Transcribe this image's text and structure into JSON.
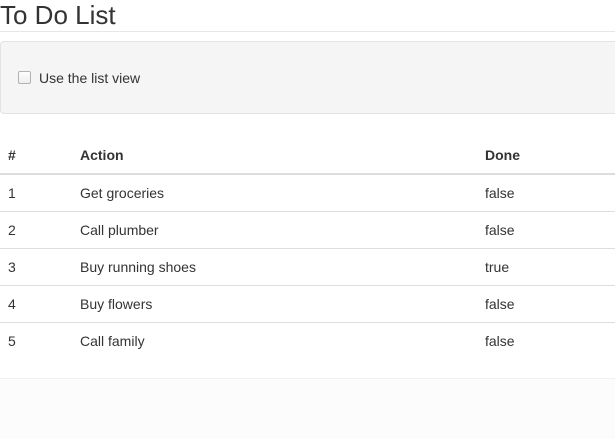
{
  "page": {
    "title": "To Do List"
  },
  "panel": {
    "checkbox_label": "Use the list view",
    "checkbox_checked": false
  },
  "table": {
    "headers": [
      "#",
      "Action",
      "Done"
    ],
    "rows": [
      {
        "num": "1",
        "action": "Get groceries",
        "done": "false"
      },
      {
        "num": "2",
        "action": "Call plumber",
        "done": "false"
      },
      {
        "num": "3",
        "action": "Buy running shoes",
        "done": "true"
      },
      {
        "num": "4",
        "action": "Buy flowers",
        "done": "false"
      },
      {
        "num": "5",
        "action": "Call family",
        "done": "false"
      }
    ]
  },
  "colors": {
    "well_background": "#f5f5f5",
    "well_border": "#e3e3e3",
    "table_border": "#dddddd",
    "text": "#333333"
  }
}
